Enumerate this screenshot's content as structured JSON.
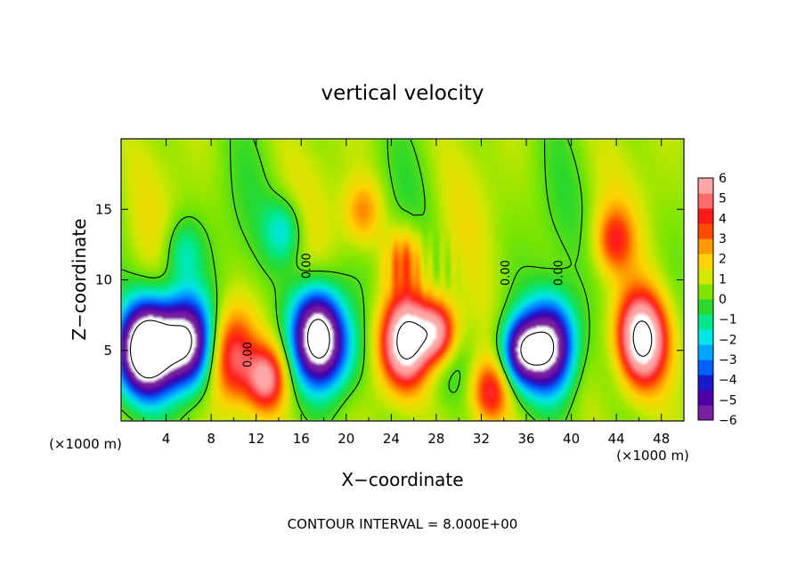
{
  "chart_data": {
    "type": "heatmap",
    "title": "vertical velocity",
    "xlabel": "X−coordinate",
    "ylabel": "Z−coordinate",
    "x_unit_left": "(×1000 m)",
    "x_unit_right": "(×1000 m)",
    "footer": "CONTOUR INTERVAL = 8.000E+00",
    "xlim": [
      0,
      50
    ],
    "ylim": [
      0,
      20
    ],
    "x_ticks": [
      4,
      8,
      12,
      16,
      20,
      24,
      28,
      32,
      36,
      40,
      44,
      48
    ],
    "x_tick_labels": [
      "4",
      "8",
      "12",
      "16",
      "20",
      "24",
      "28",
      "32",
      "36",
      "40",
      "44",
      "48"
    ],
    "y_ticks": [
      5,
      10,
      15
    ],
    "y_tick_labels": [
      "5",
      "10",
      "15"
    ],
    "contour_labels": [
      {
        "text": "0.00",
        "x": 16.8,
        "y": 11.0
      },
      {
        "text": "0.00",
        "x": 11.6,
        "y": 4.7
      },
      {
        "text": "0.00",
        "x": 39.2,
        "y": 10.5
      },
      {
        "text": "0.00",
        "x": 34.5,
        "y": 10.5
      }
    ],
    "colorbar": {
      "range": [
        -6,
        6
      ],
      "ticks": [
        6,
        5,
        4,
        3,
        2,
        1,
        0,
        -1,
        -2,
        -3,
        -4,
        -5,
        -6
      ],
      "tick_labels": [
        "6",
        "5",
        "4",
        "3",
        "2",
        "1",
        "0",
        "−1",
        "−2",
        "−3",
        "−4",
        "−5",
        "−6"
      ],
      "colors": [
        "#7a1fa0",
        "#4b00a8",
        "#1a1acd",
        "#0060ff",
        "#00a5ff",
        "#00e6e6",
        "#00e88a",
        "#2bd82b",
        "#7ee600",
        "#d6e600",
        "#ffd400",
        "#ff9a00",
        "#ff4a00",
        "#ff1a1a",
        "#ff6a6a",
        "#ffa6a6"
      ]
    },
    "features": [
      {
        "kind": "updraft",
        "x": 46.2,
        "y": 5.5,
        "amplitude": 10
      },
      {
        "kind": "updraft",
        "x": 25.4,
        "y": 5.5,
        "amplitude": 9
      },
      {
        "kind": "updraft",
        "x": 28.2,
        "y": 6.2,
        "amplitude": 6
      },
      {
        "kind": "updraft",
        "x": 9.8,
        "y": 4.5,
        "amplitude": 7
      },
      {
        "kind": "updraft",
        "x": 12.9,
        "y": 3.0,
        "amplitude": 5
      },
      {
        "kind": "updraft",
        "x": 32.8,
        "y": 2.0,
        "amplitude": 4
      },
      {
        "kind": "updraft",
        "x": 43.8,
        "y": 12.8,
        "amplitude": 3
      },
      {
        "kind": "updraft",
        "x": 21.5,
        "y": 14.8,
        "amplitude": 2.5
      },
      {
        "kind": "updraft",
        "x": 25.2,
        "y": 11.5,
        "amplitude": 3
      },
      {
        "kind": "downdraft",
        "x": 2.4,
        "y": 5.2,
        "amplitude": -10
      },
      {
        "kind": "downdraft",
        "x": 5.8,
        "y": 5.6,
        "amplitude": -9
      },
      {
        "kind": "downdraft",
        "x": 17.5,
        "y": 6.2,
        "amplitude": -9
      },
      {
        "kind": "downdraft",
        "x": 38.2,
        "y": 5.5,
        "amplitude": -7
      },
      {
        "kind": "downdraft",
        "x": 35.5,
        "y": 5.0,
        "amplitude": -5
      },
      {
        "kind": "downdraft",
        "x": 14.5,
        "y": 13.5,
        "amplitude": -2.5
      },
      {
        "kind": "downdraft",
        "x": 5.5,
        "y": 12.0,
        "amplitude": -2
      }
    ]
  }
}
